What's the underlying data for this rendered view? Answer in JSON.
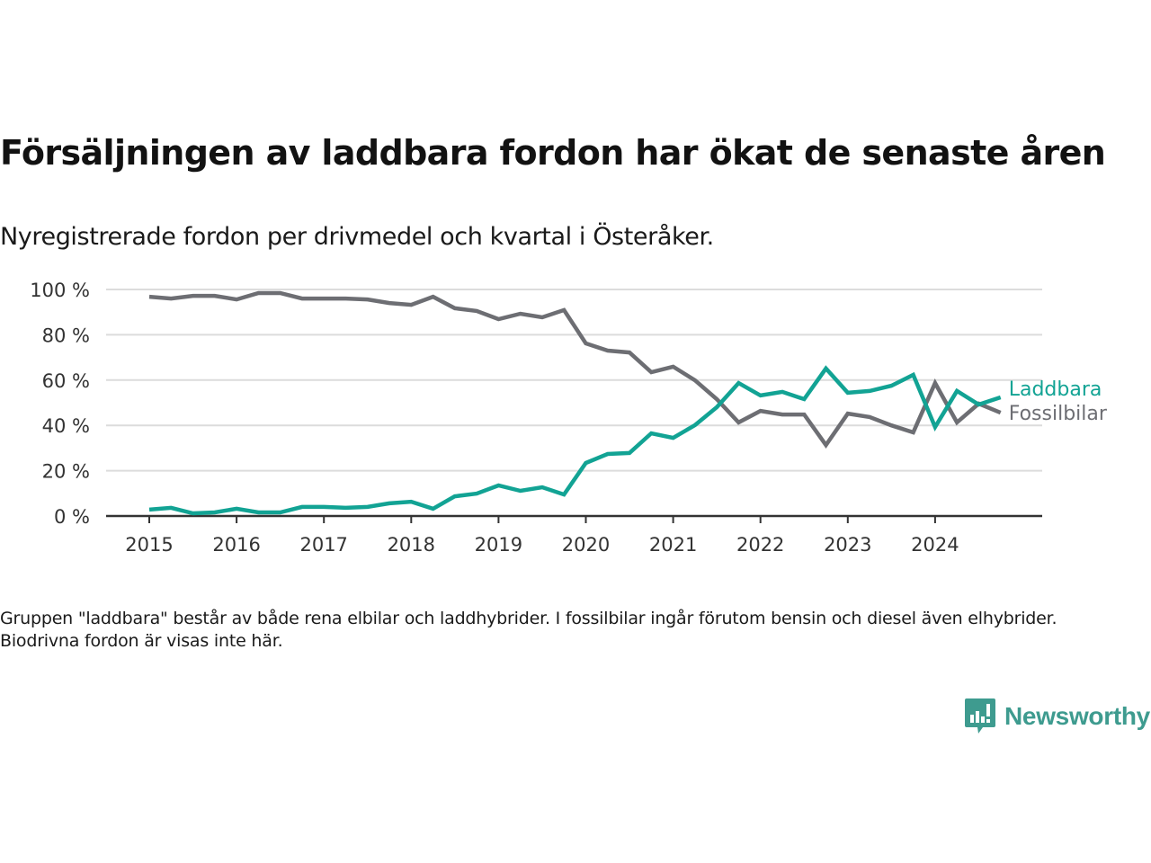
{
  "header": {
    "title": "Försäljningen av laddbara fordon har ökat de senaste åren",
    "subtitle": "Nyregistrerade fordon per drivmedel och kvartal i Österåker."
  },
  "footer": {
    "note": "Gruppen \"laddbara\" består av både rena elbilar och laddhybrider. I fossilbilar ingår förutom bensin och diesel även elhybrider. Biodrivna fordon är visas inte här.",
    "brand": "Newsworthy",
    "brand_icon": "newsworthy-logo-icon",
    "brand_color": "#3e9b8f"
  },
  "chart_data": {
    "type": "line",
    "title": "Försäljningen av laddbara fordon har ökat de senaste åren",
    "subtitle": "Nyregistrerade fordon per drivmedel och kvartal i Österåker.",
    "xlabel": "",
    "ylabel": "",
    "x_ticks": [
      "2015",
      "2016",
      "2017",
      "2018",
      "2019",
      "2020",
      "2021",
      "2022",
      "2023",
      "2024"
    ],
    "y_ticks": [
      "0 %",
      "20 %",
      "40 %",
      "60 %",
      "80 %",
      "100 %"
    ],
    "ylim": [
      0,
      100
    ],
    "xlim": [
      2014.5,
      2025.25
    ],
    "grid": true,
    "legend": "direct-labels-right",
    "x": [
      2015.0,
      2015.25,
      2015.5,
      2015.75,
      2016.0,
      2016.25,
      2016.5,
      2016.75,
      2017.0,
      2017.25,
      2017.5,
      2017.75,
      2018.0,
      2018.25,
      2018.5,
      2018.75,
      2019.0,
      2019.25,
      2019.5,
      2019.75,
      2020.0,
      2020.25,
      2020.5,
      2020.75,
      2021.0,
      2021.25,
      2021.5,
      2021.75,
      2022.0,
      2022.25,
      2022.5,
      2022.75,
      2023.0,
      2023.25,
      2023.5,
      2023.75,
      2024.0,
      2024.25,
      2024.5,
      2024.75
    ],
    "series": [
      {
        "name": "Fossilbilar",
        "color": "#6d6e73",
        "values": [
          96.8,
          96.0,
          97.2,
          97.2,
          95.6,
          98.4,
          98.4,
          96.0,
          96.0,
          96.0,
          95.6,
          94.0,
          93.2,
          96.8,
          91.7,
          90.5,
          86.9,
          89.3,
          87.7,
          90.9,
          76.2,
          73.0,
          72.2,
          63.5,
          65.9,
          59.9,
          51.6,
          41.3,
          46.4,
          44.8,
          44.8,
          31.3,
          45.2,
          43.7,
          40.0,
          36.9,
          58.7,
          41.3,
          49.6,
          45.6
        ]
      },
      {
        "name": "Laddbara",
        "color": "#12a394",
        "values": [
          2.8,
          3.6,
          1.2,
          1.6,
          3.2,
          1.6,
          1.6,
          4.0,
          4.0,
          3.6,
          4.0,
          5.6,
          6.3,
          3.2,
          8.7,
          9.9,
          13.5,
          11.1,
          12.7,
          9.5,
          23.4,
          27.4,
          27.8,
          36.5,
          34.5,
          40.1,
          48.0,
          58.7,
          53.2,
          54.8,
          51.6,
          65.1,
          54.4,
          55.2,
          57.5,
          62.3,
          39.3,
          55.2,
          49.2,
          52.4
        ]
      }
    ]
  }
}
